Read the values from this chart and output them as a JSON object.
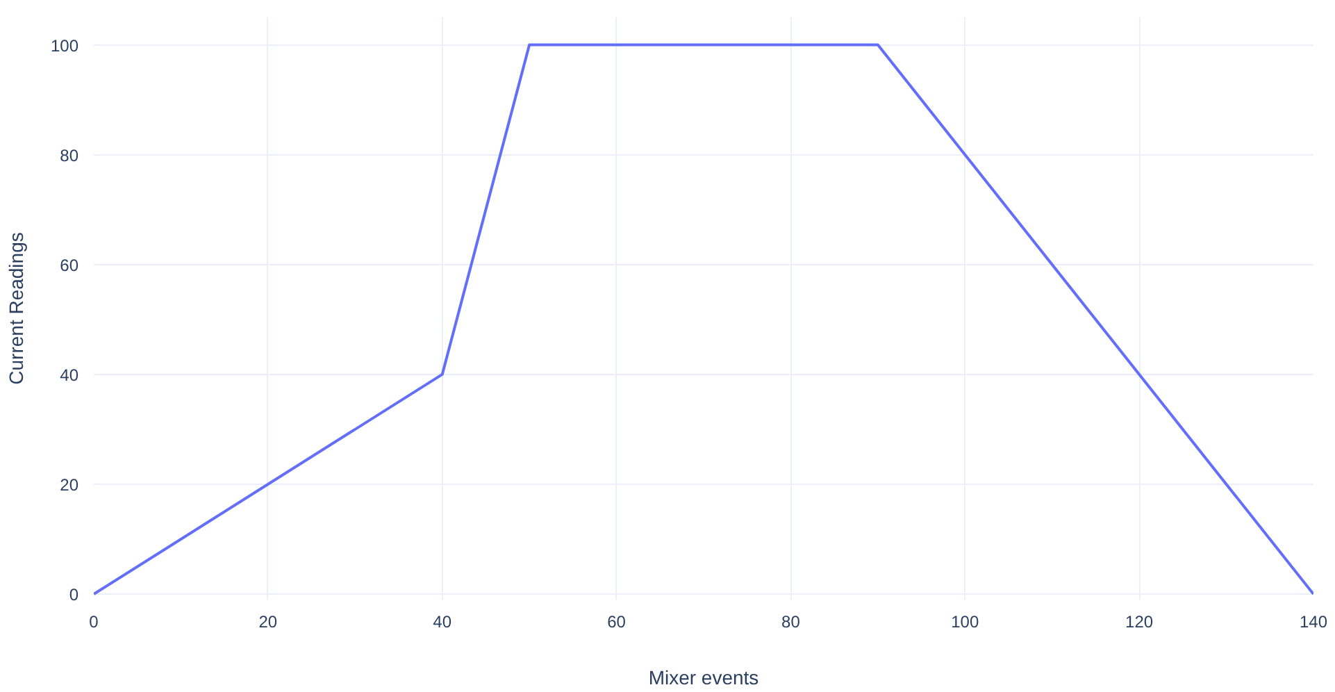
{
  "chart_data": {
    "type": "line",
    "xlabel": "Mixer events",
    "ylabel": "Current Readings",
    "x": [
      0,
      40,
      50,
      90,
      140
    ],
    "series": [
      {
        "color": "#636efa",
        "values": [
          0,
          40,
          100,
          100,
          0
        ]
      }
    ],
    "xlim": [
      0,
      140
    ],
    "ylim": [
      -1,
      105
    ],
    "xticks": [
      0,
      20,
      40,
      60,
      80,
      100,
      120,
      140
    ],
    "yticks": [
      0,
      20,
      40,
      60,
      80,
      100
    ],
    "grid": true,
    "marker": "none",
    "line_style": "solid"
  }
}
